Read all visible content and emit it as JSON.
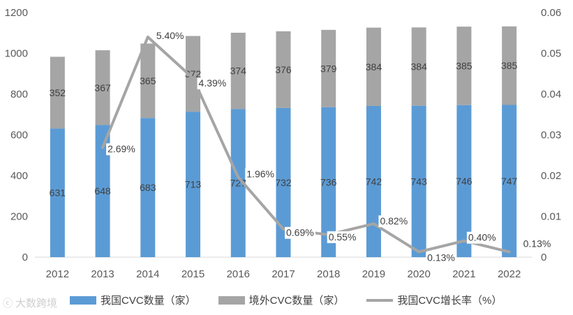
{
  "chart_data": {
    "type": "bar",
    "stacked": true,
    "categories": [
      "2012",
      "2013",
      "2014",
      "2015",
      "2016",
      "2017",
      "2018",
      "2019",
      "2020",
      "2021",
      "2022"
    ],
    "series": [
      {
        "name": "我国CVC数量（家）",
        "values": [
          631,
          648,
          683,
          713,
          727,
          732,
          736,
          742,
          743,
          746,
          747
        ],
        "color": "#5b9bd5",
        "labels": [
          "631",
          "648",
          "683",
          "713",
          "727",
          "732",
          "736",
          "742",
          "743",
          "746",
          "747"
        ]
      },
      {
        "name": "境外CVC数量（家）",
        "values": [
          352,
          367,
          365,
          372,
          374,
          376,
          379,
          384,
          384,
          385,
          385
        ],
        "color": "#a5a5a5",
        "labels": [
          "352",
          "367",
          "365",
          "372",
          "374",
          "376",
          "379",
          "384",
          "384",
          "385",
          "385"
        ]
      }
    ],
    "line_series": {
      "name": "我国CVC增长率（%）",
      "axis": "right",
      "color": "#a5a5a5",
      "x": [
        "2013",
        "2014",
        "2015",
        "2016",
        "2017",
        "2018",
        "2019",
        "2020",
        "2021",
        "2022"
      ],
      "values": [
        0.0269,
        0.054,
        0.0439,
        0.0196,
        0.0069,
        0.0055,
        0.0082,
        0.0013,
        0.004,
        0.0013
      ],
      "labels": [
        "2.69%",
        "5.40%",
        "4.39%",
        "1.96%",
        "0.69%",
        "0.55%",
        "0.82%",
        "0.13%",
        "0.40%",
        "0.13%"
      ]
    },
    "ylim": [
      0,
      1200
    ],
    "yticks": [
      "0",
      "200",
      "400",
      "600",
      "800",
      "1000",
      "1200"
    ],
    "y2lim": [
      0,
      0.06
    ],
    "y2ticks": [
      "0",
      "0.01",
      "0.02",
      "0.03",
      "0.04",
      "0.05",
      "0.06"
    ],
    "grid": false,
    "legend_position": "bottom"
  },
  "watermark": {
    "icon": "ⓒ",
    "text": "大数跨境"
  }
}
